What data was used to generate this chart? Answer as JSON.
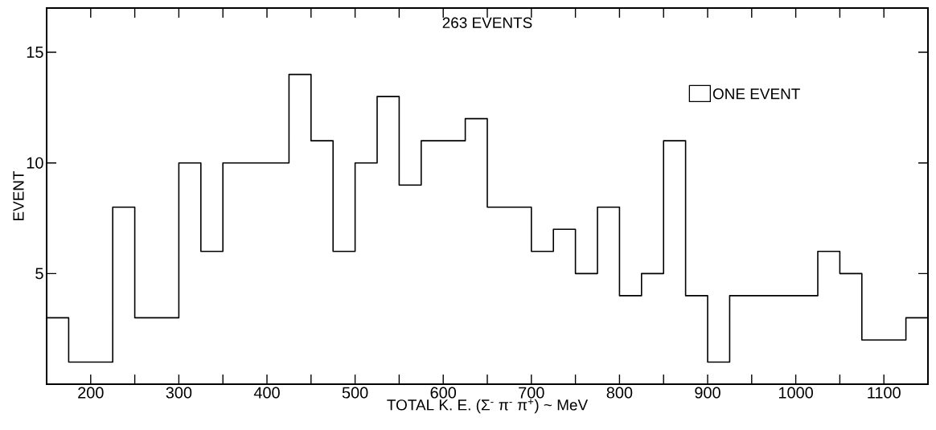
{
  "chart_data": {
    "type": "histogram",
    "title": "263 EVENTS",
    "xlabel": "TOTAL  K. E. (Σ$^{-}$ π$^{-}$ π$^{+}$) ~ MeV",
    "ylabel": "EVENT",
    "bins": [
      150,
      175,
      200,
      225,
      250,
      275,
      300,
      325,
      350,
      375,
      400,
      425,
      450,
      475,
      500,
      525,
      550,
      575,
      600,
      625,
      650,
      675,
      700,
      725,
      750,
      775,
      800,
      825,
      850,
      875,
      900,
      925,
      950,
      975,
      1000,
      1025,
      1050,
      1075,
      1100,
      1125,
      1150
    ],
    "series": [
      {
        "name": "ONE EVENT",
        "color": "#000000",
        "values": [
          3,
          1,
          1,
          8,
          3,
          3,
          10,
          6,
          10,
          10,
          10,
          14,
          11,
          6,
          10,
          13,
          9,
          11,
          11,
          12,
          8,
          8,
          6,
          7,
          5,
          8,
          4,
          5,
          11,
          4,
          1,
          4,
          4,
          4,
          4,
          6,
          5,
          2,
          2,
          3
        ]
      }
    ],
    "legend": "top right",
    "xlim": [
      150,
      1150
    ],
    "ylim": [
      0,
      17
    ],
    "xticks": [
      200,
      {
        "value": 250,
        "label": null
      },
      300,
      {
        "value": 350,
        "label": null
      },
      400,
      {
        "value": 450,
        "label": null
      },
      500,
      {
        "value": 550,
        "label": null
      },
      600,
      {
        "value": 650,
        "label": null
      },
      700,
      {
        "value": 750,
        "label": null
      },
      800,
      {
        "value": 850,
        "label": null
      },
      900,
      {
        "value": 950,
        "label": null
      },
      1000,
      {
        "value": 1050,
        "label": null
      },
      1100
    ],
    "yticks": [
      5,
      10,
      15
    ],
    "grid": false
  }
}
